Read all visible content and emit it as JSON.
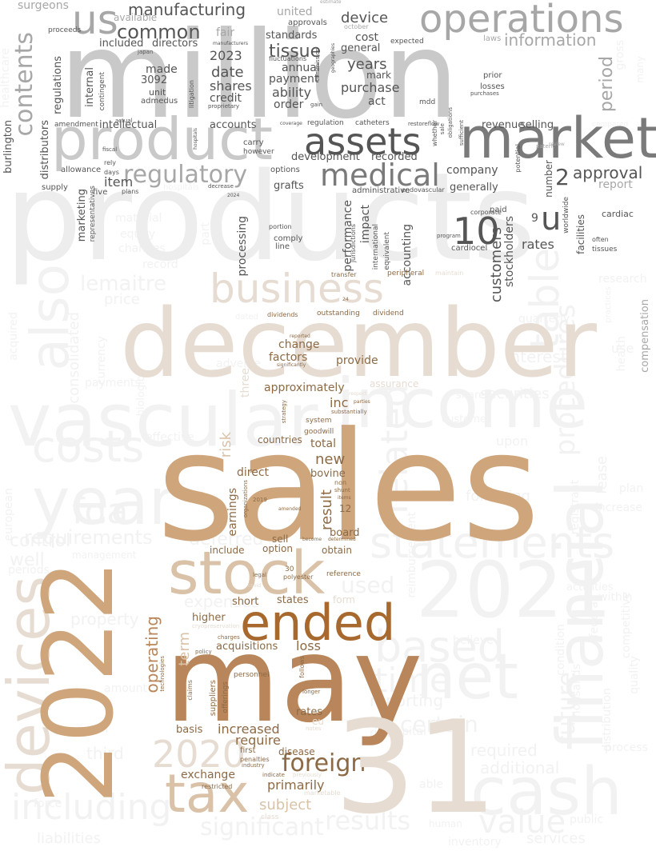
{
  "words": {
    "products": "products",
    "million": "million",
    "december": "december",
    "sales": "sales",
    "may": "may",
    "operations": "operations",
    "market": "market",
    "product": "product",
    "assets": "assets",
    "medical": "medical",
    "business": "business",
    "vascular": "vascular",
    "income": "income",
    "year": "year",
    "costs": "costs",
    "stock": "stock",
    "ended": "ended",
    "y2021": "2021",
    "y2022": "2022",
    "n31": "31",
    "financial": "financial",
    "devices": "devices",
    "net": "net",
    "cash": "cash",
    "tax": "tax",
    "y2020": "2020",
    "foreign": "foreign",
    "statements": "statements",
    "based": "based",
    "time": "time",
    "value": "value",
    "including": "including",
    "results": "results",
    "significant": "significant",
    "certain": "certain",
    "related": "related",
    "also": "also",
    "contents": "contents",
    "us": "us",
    "u": "u",
    "n10": "10",
    "n2": "2",
    "approval": "approval",
    "regulatory": "regulatory",
    "manufacturing": "manufacturing",
    "common": "common",
    "tissue": "tissue",
    "information": "information",
    "device": "device",
    "years": "years",
    "payment": "payment",
    "annual": "annual",
    "ability": "ability",
    "order": "order",
    "purchase": "purchase",
    "act": "act",
    "mark": "mark",
    "general": "general",
    "cost": "cost",
    "standards": "standards",
    "united": "united",
    "y2023": "2023",
    "date": "date",
    "shares": "shares",
    "credit": "credit",
    "fair": "fair",
    "made": "made",
    "unit": "unit",
    "admedus": "admedus",
    "n3092": "3092",
    "included": "included",
    "directors": "directors",
    "available": "available",
    "intellectual": "intellectual",
    "accounts": "accounts",
    "carry": "carry",
    "however": "however",
    "development": "development",
    "recorded": "recorded",
    "options": "options",
    "grafts": "grafts",
    "company": "company",
    "generally": "generally",
    "item": "item",
    "five": "five",
    "plans": "plans",
    "supply": "supply",
    "allowance": "allowance",
    "days": "days",
    "rely": "rely",
    "marketing": "marketing",
    "representatives": "representatives",
    "regulations": "regulations",
    "distributors": "distributors",
    "burlington": "burlington",
    "processing": "processing",
    "performance": "performance",
    "impact": "impact",
    "accounting": "accounting",
    "customers": "customers",
    "stockholders": "stockholders",
    "revenue": "revenue",
    "selling": "selling",
    "number": "number",
    "rates": "rates",
    "report": "report",
    "paid": "paid",
    "cardiac": "cardiac",
    "cardiocel": "cardiocel",
    "tissues": "tissues",
    "often": "often",
    "worldwide": "worldwide",
    "facilities": "facilities",
    "n9": "9",
    "research": "research",
    "compensation": "compensation",
    "lemaitre": "lemaitre",
    "price": "price",
    "table": "table",
    "future": "future",
    "procedures": "procedures",
    "interest": "interest",
    "securities": "securities",
    "dividends": "dividends",
    "outstanding": "outstanding",
    "dividend": "dividend",
    "change": "change",
    "factors": "factors",
    "provide": "provide",
    "approximately": "approximately",
    "inc": "inc",
    "assurance": "assurance",
    "risk": "risk",
    "three": "three",
    "earnings": "earnings",
    "countries": "countries",
    "total": "total",
    "new": "new",
    "bovine": "bovine",
    "direct": "direct",
    "result": "result",
    "n12": "12",
    "board": "board",
    "sell": "sell",
    "option": "option",
    "obtain": "obtain",
    "include": "include",
    "reference": "reference",
    "states": "states",
    "short": "short",
    "higher": "higher",
    "acquisitions": "acquisitions",
    "loss": "loss",
    "operating": "operating",
    "term": "term",
    "rates2": "rates",
    "basis": "basis",
    "increased": "increased",
    "require": "require",
    "disease": "disease",
    "exchange": "exchange",
    "primarily": "primarily",
    "subject": "subject",
    "requirements": "requirements",
    "fda": "fda",
    "control": "control",
    "deferred": "deferred",
    "well": "well",
    "property": "property",
    "expenses": "expenses",
    "used": "used",
    "reporting": "reporting",
    "following": "following",
    "additional": "additional",
    "required": "required",
    "third": "third",
    "liabilities": "liabilities",
    "services": "services",
    "inventory": "inventory",
    "form": "form",
    "transfer": "transfer",
    "peripheral": "peripheral",
    "maintain": "maintain",
    "losses": "losses",
    "prior": "prior",
    "purchases": "purchases",
    "mdd": "mdd",
    "potential": "potential",
    "patent": "patent",
    "restoreflow": "restoreflow",
    "catheters": "catheters",
    "regulation": "regulation",
    "coverage": "coverage",
    "gain": "gain",
    "proprietary": "proprietary",
    "fluctuations": "fluctuations",
    "litigation": "litigation",
    "approvals": "approvals",
    "october": "october",
    "expected": "expected",
    "laws": "laws",
    "many": "many",
    "period": "period",
    "surgeons": "surgeons",
    "proceeds": "proceeds",
    "japan": "japan",
    "manufacturers": "manufacturers",
    "internal": "internal",
    "contingent": "contingent",
    "actual": "actual",
    "fiscal": "fiscal",
    "amendment": "amendment",
    "hospitals": "hospitals",
    "decrease": "decrease",
    "y2024": "2024",
    "jurisdictions": "jurisdictions",
    "international": "international",
    "equivalent": "equivalent",
    "administrative": "administrative",
    "endovascular": "endovascular",
    "portion": "portion",
    "comply": "comply",
    "line": "line",
    "part": "part",
    "material": "material",
    "equity": "equity",
    "changes": "changes",
    "record": "record",
    "corporate": "corporate",
    "program": "program",
    "sufficient": "sufficient",
    "obligations": "obligations",
    "sale": "sale",
    "whether": "whether",
    "commission": "commission",
    "geographies": "geographies",
    "estimate": "estimate",
    "n24": "24",
    "reported": "reported",
    "significantly": "significantly",
    "respect": "respect",
    "parties": "parties",
    "substantially": "substantially",
    "system": "system",
    "goodwill": "goodwill",
    "strategy": "strategy",
    "non": "non",
    "shunt": "shunt",
    "items": "items",
    "organizations": "organizations",
    "y2019": "2019",
    "amended": "amended",
    "become": "become",
    "determined": "determined",
    "n30": "30",
    "polyester": "polyester",
    "legal": "legal",
    "covid": "covid",
    "cryopreservation": "cryopreservation",
    "charges": "charges",
    "policy": "policy",
    "technologies": "technologies",
    "claims": "claims",
    "suppliers": "suppliers",
    "offerings": "offerings",
    "personnel": "personnel",
    "follows": "follows",
    "longer": "longer",
    "eu": "eu",
    "notes": "notes",
    "first": "first",
    "penalties": "penalties",
    "industry": "industry",
    "indicate": "indicate",
    "previously": "previously",
    "marketable": "marketable",
    "class": "class",
    "restricted": "restricted",
    "effective": "effective",
    "payments": "payments",
    "acquired": "acquired",
    "consolidated": "consolidated",
    "european": "european",
    "periods": "periods",
    "management": "management",
    "amount": "amount",
    "acquisition": "acquisition",
    "force": "force",
    "risks": "risks",
    "capital": "capital",
    "upon": "upon",
    "customer": "customer",
    "reimbursement": "reimbursement",
    "share": "share",
    "believe": "believe",
    "condition": "condition",
    "within": "within",
    "increase": "increase",
    "plan": "plan",
    "process": "process",
    "public": "public",
    "human": "human",
    "able": "able",
    "thousands": "thousands",
    "registrant": "registrant",
    "lease": "lease",
    "quarterly": "quarterly",
    "use": "use",
    "quality": "quality",
    "activities": "activities",
    "distribution": "distribution",
    "competitive": "competitive",
    "federal": "federal",
    "health": "health",
    "compared": "compared",
    "review": "review",
    "adverse": "adverse",
    "currency": "currency",
    "dated": "dated",
    "biologic": "biologic",
    "practices": "practices",
    "healthcare": "healthcare",
    "gross": "gross"
  }
}
